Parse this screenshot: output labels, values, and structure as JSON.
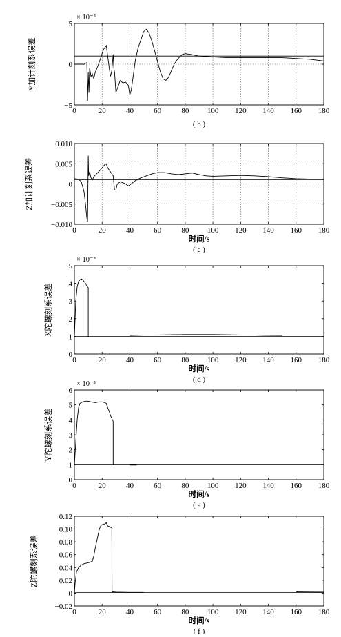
{
  "chart_data": [
    {
      "type": "line",
      "ylabel": "Y加计刻系误差",
      "xlabel": "",
      "caption": "( b )",
      "exponent": "× 10⁻³",
      "xlim": [
        0,
        180
      ],
      "ylim": [
        -5,
        5
      ],
      "xticks": [
        0,
        20,
        40,
        60,
        80,
        100,
        120,
        140,
        160,
        180
      ],
      "yticks": [
        -5,
        0,
        5
      ],
      "ytick_labels": [
        "−5",
        "0",
        "5"
      ],
      "grid": true,
      "reference": 1,
      "series": [
        {
          "x": [
            0,
            7,
            9,
            9.5,
            10,
            10.5,
            11,
            12,
            13,
            14,
            15,
            17,
            19,
            21,
            23,
            24,
            25,
            26,
            27,
            28,
            28.5,
            29,
            30,
            31,
            33,
            35,
            37,
            39,
            40,
            41,
            42,
            44,
            46,
            48,
            50,
            52,
            54,
            56,
            58,
            60,
            62,
            64,
            66,
            68,
            70,
            72,
            74,
            76,
            78,
            80,
            84,
            90,
            100,
            110,
            120,
            130,
            140,
            150,
            160,
            170,
            180
          ],
          "y": [
            0,
            0,
            0.2,
            -4.5,
            -1.0,
            -3.5,
            -0.5,
            -1.5,
            -1.2,
            -1.8,
            -1.0,
            -0.2,
            0.8,
            1.8,
            2.3,
            1.0,
            -0.3,
            -1.5,
            -0.8,
            1.2,
            -0.5,
            -1.0,
            -3.5,
            -3.0,
            -2.0,
            -2.3,
            -2.2,
            -2.6,
            -3.8,
            -3.2,
            -2.0,
            0.5,
            2.0,
            3.0,
            4.0,
            4.3,
            3.8,
            2.8,
            1.6,
            0.3,
            -0.9,
            -1.8,
            -2.0,
            -1.6,
            -0.8,
            0,
            0.5,
            0.9,
            1.2,
            1.3,
            1.2,
            1.0,
            0.9,
            0.8,
            0.8,
            0.8,
            0.8,
            0.8,
            0.7,
            0.6,
            0.4
          ]
        }
      ]
    },
    {
      "type": "line",
      "ylabel": "Z加计刻系误差",
      "xlabel": "时间/s",
      "caption": "( c )",
      "exponent": "",
      "xlim": [
        0,
        180
      ],
      "ylim": [
        -0.01,
        0.01
      ],
      "xticks": [
        0,
        20,
        40,
        60,
        80,
        100,
        120,
        140,
        160,
        180
      ],
      "yticks": [
        -0.01,
        -0.005,
        0,
        0.005,
        0.01
      ],
      "ytick_labels": [
        "−0.010",
        "−0.005",
        "0",
        "0.005",
        "0.010"
      ],
      "grid": true,
      "reference": 0.001,
      "series": [
        {
          "x": [
            0,
            3,
            5,
            7,
            8,
            9,
            9.5,
            10,
            10.3,
            11,
            12,
            13,
            14,
            16,
            18,
            20,
            22,
            23,
            24,
            25,
            26,
            27,
            28,
            29,
            30,
            31,
            33,
            35,
            37,
            39,
            41,
            44,
            48,
            52,
            56,
            60,
            65,
            70,
            75,
            80,
            85,
            90,
            95,
            100,
            110,
            120,
            130,
            140,
            150,
            160,
            170,
            180
          ],
          "y": [
            0.0013,
            0.0012,
            0.0005,
            -0.002,
            -0.005,
            -0.0085,
            -0.0093,
            0.007,
            0.002,
            0.003,
            0.0015,
            0.001,
            0.0018,
            0.0025,
            0.0032,
            0.004,
            0.0048,
            0.005,
            0.004,
            0.0035,
            0.003,
            0.0025,
            0.002,
            -0.0015,
            -0.0015,
            0,
            0.0005,
            0.0003,
            0,
            -0.0005,
            0,
            0.0008,
            0.0015,
            0.002,
            0.0025,
            0.0028,
            0.0028,
            0.0025,
            0.0023,
            0.0025,
            0.0027,
            0.0023,
            0.002,
            0.0019,
            0.002,
            0.0021,
            0.002,
            0.0018,
            0.0015,
            0.0013,
            0.0012,
            0.0012
          ]
        }
      ]
    },
    {
      "type": "line",
      "ylabel": "X陀螺刻系误差",
      "xlabel": "时间/s",
      "caption": "( d )",
      "exponent": "× 10⁻³",
      "xlim": [
        0,
        180
      ],
      "ylim": [
        0,
        5
      ],
      "xticks": [
        0,
        20,
        40,
        60,
        80,
        100,
        120,
        140,
        160,
        180
      ],
      "yticks": [
        0,
        1,
        2,
        3,
        4,
        5
      ],
      "ytick_labels": [
        "0",
        "1",
        "2",
        "3",
        "4",
        "5"
      ],
      "grid": false,
      "reference": 1,
      "series": [
        {
          "x": [
            0,
            0.5,
            1,
            2,
            3,
            4,
            5,
            6,
            7,
            8,
            9,
            10,
            10,
            10.5
          ],
          "y": [
            1,
            2.0,
            3.0,
            3.8,
            4.1,
            4.2,
            4.25,
            4.2,
            4.1,
            4.0,
            3.85,
            3.75,
            1.0,
            1.0
          ]
        },
        {
          "x": [
            40,
            50,
            60,
            70,
            80,
            90,
            100,
            110,
            120,
            130,
            140,
            150
          ],
          "y": [
            1.05,
            1.07,
            1.08,
            1.09,
            1.1,
            1.1,
            1.1,
            1.09,
            1.08,
            1.07,
            1.06,
            1.05
          ]
        }
      ]
    },
    {
      "type": "line",
      "ylabel": "Y陀螺刻系误差",
      "xlabel": "时间/s",
      "caption": "( e )",
      "exponent": "× 10⁻³",
      "xlim": [
        0,
        180
      ],
      "ylim": [
        0,
        6
      ],
      "xticks": [
        0,
        20,
        40,
        60,
        80,
        100,
        120,
        140,
        160,
        180
      ],
      "yticks": [
        0,
        1,
        2,
        3,
        4,
        5,
        6
      ],
      "ytick_labels": [
        "0",
        "1",
        "2",
        "3",
        "4",
        "5",
        "6"
      ],
      "grid": false,
      "reference": 1,
      "series": [
        {
          "x": [
            0,
            1,
            2,
            3,
            4,
            6,
            8,
            10,
            12,
            15,
            18,
            20,
            22,
            23,
            24,
            25,
            26,
            27,
            28,
            28,
            29
          ],
          "y": [
            1,
            2.5,
            4.0,
            4.8,
            5.1,
            5.2,
            5.25,
            5.25,
            5.2,
            5.15,
            5.2,
            5.2,
            5.15,
            5.1,
            4.8,
            4.6,
            4.3,
            4.1,
            3.9,
            1.0,
            1.0
          ]
        },
        {
          "x": [
            40,
            45
          ],
          "y": [
            0.98,
            0.98
          ]
        }
      ]
    },
    {
      "type": "line",
      "ylabel": "Z陀螺刻系误差",
      "xlabel": "时间/s",
      "caption": "( f )",
      "exponent": "",
      "xlim": [
        0,
        180
      ],
      "ylim": [
        -0.02,
        0.12
      ],
      "xticks": [
        0,
        20,
        40,
        60,
        80,
        100,
        120,
        140,
        160,
        180
      ],
      "yticks": [
        -0.02,
        0,
        0.02,
        0.04,
        0.06,
        0.08,
        0.1,
        0.12
      ],
      "ytick_labels": [
        "−0.02",
        "0",
        "0.02",
        "0.04",
        "0.06",
        "0.08",
        "0.10",
        "0.12"
      ],
      "grid": false,
      "reference": 0.001,
      "series": [
        {
          "x": [
            0,
            0.5,
            1.5,
            3,
            5,
            7,
            9,
            11,
            13,
            14,
            15,
            16,
            17,
            18,
            19,
            20,
            22,
            23,
            24,
            26,
            27,
            27.2,
            28,
            30,
            40,
            50
          ],
          "y": [
            0,
            0.015,
            0.033,
            0.04,
            0.044,
            0.046,
            0.047,
            0.048,
            0.05,
            0.058,
            0.07,
            0.08,
            0.09,
            0.1,
            0.105,
            0.107,
            0.108,
            0.11,
            0.105,
            0.103,
            0.102,
            0.002,
            0.002,
            0.0015,
            0.0012,
            0.0012
          ]
        },
        {
          "x": [
            160,
            170,
            180
          ],
          "y": [
            0.002,
            0.0018,
            0.0015
          ]
        }
      ]
    }
  ]
}
